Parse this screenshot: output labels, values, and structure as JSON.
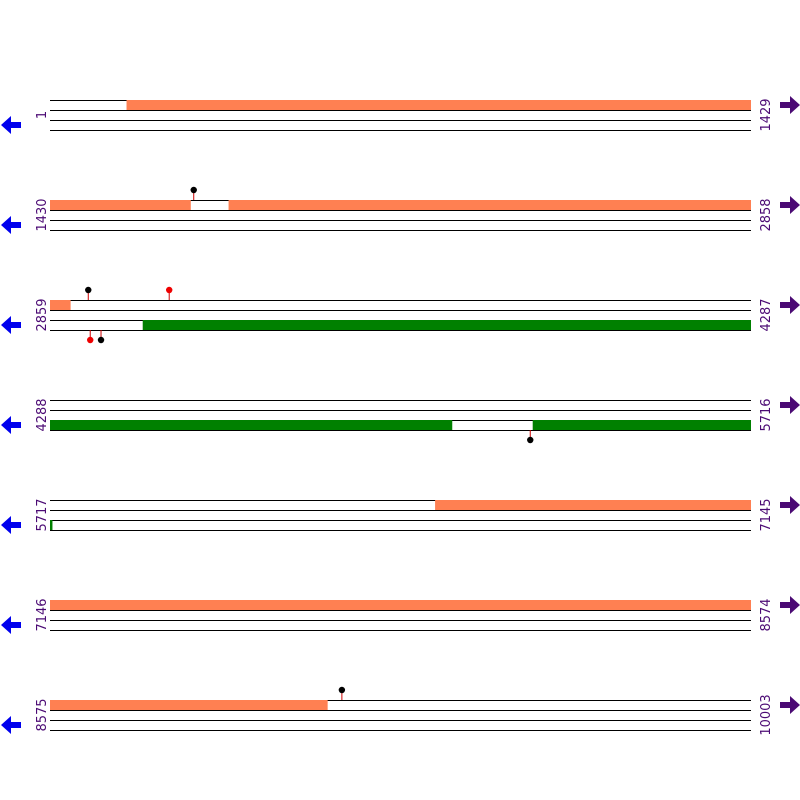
{
  "colors": {
    "forward_feature": "#ff8052",
    "reverse_feature": "#008000",
    "left_arrow": "#0000ee",
    "right_arrow": "#4b0a74",
    "label": "#4b0a74",
    "stem": "#cc0000",
    "marker_black": "#000000",
    "marker_red": "#ee0000"
  },
  "icons": {
    "left": "arrow-left-icon",
    "right": "arrow-right-icon"
  },
  "rows": [
    {
      "start_label": "1",
      "end_label": "1429",
      "start": 1,
      "end": 1429,
      "features": [
        {
          "strand": "forward",
          "from": 157,
          "to": 1429
        }
      ],
      "markers": []
    },
    {
      "start_label": "1430",
      "end_label": "2858",
      "start": 1430,
      "end": 2858,
      "features": [
        {
          "strand": "forward",
          "from": 1430,
          "to": 1716
        },
        {
          "strand": "forward",
          "from": 1794,
          "to": 2858
        }
      ],
      "markers": [
        {
          "pos": 1723,
          "side": "above",
          "color": "black"
        }
      ]
    },
    {
      "start_label": "2859",
      "end_label": "4287",
      "start": 2859,
      "end": 4287,
      "features": [
        {
          "strand": "forward",
          "from": 2859,
          "to": 2900
        },
        {
          "strand": "reverse",
          "from": 3048,
          "to": 4287
        }
      ],
      "markers": [
        {
          "pos": 2937,
          "side": "above",
          "color": "black"
        },
        {
          "pos": 3102,
          "side": "above",
          "color": "red"
        },
        {
          "pos": 2941,
          "side": "below",
          "color": "red"
        },
        {
          "pos": 2963,
          "side": "below",
          "color": "black"
        }
      ]
    },
    {
      "start_label": "4288",
      "end_label": "5716",
      "start": 4288,
      "end": 5716,
      "features": [
        {
          "strand": "reverse",
          "from": 4288,
          "to": 5107
        },
        {
          "strand": "reverse",
          "from": 5272,
          "to": 5716
        }
      ],
      "markers": [
        {
          "pos": 5267,
          "side": "below",
          "color": "black"
        }
      ]
    },
    {
      "start_label": "5717",
      "end_label": "7145",
      "start": 5717,
      "end": 7145,
      "features": [
        {
          "strand": "forward",
          "from": 6502,
          "to": 7145
        },
        {
          "strand": "reverse",
          "from": 5717,
          "to": 5721
        }
      ],
      "markers": []
    },
    {
      "start_label": "7146",
      "end_label": "8574",
      "start": 7146,
      "end": 8574,
      "features": [
        {
          "strand": "forward",
          "from": 7146,
          "to": 8574
        }
      ],
      "markers": []
    },
    {
      "start_label": "8575",
      "end_label": "10003",
      "start": 8575,
      "end": 10003,
      "features": [
        {
          "strand": "forward",
          "from": 8575,
          "to": 9140
        }
      ],
      "markers": [
        {
          "pos": 9170,
          "side": "above",
          "color": "black"
        }
      ]
    }
  ]
}
